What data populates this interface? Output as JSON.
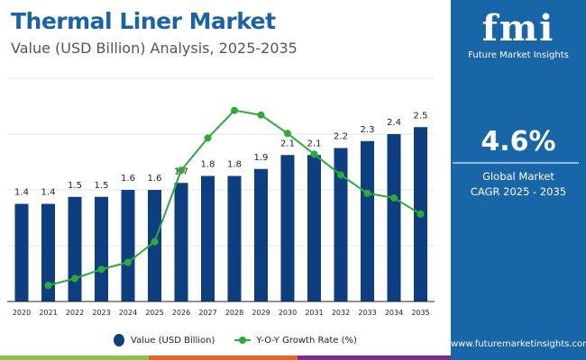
{
  "header": {
    "title": "Thermal Liner Market",
    "subtitle": "Value (USD Billion) Analysis, 2025-2035"
  },
  "panel": {
    "logo_text": "fmi",
    "brand": "Future Market Insights",
    "cagr": "4.6%",
    "cagr_label_1": "Global Market",
    "cagr_label_2": "CAGR 2025 - 2035",
    "url": "www.futuremarketinsights.com"
  },
  "colors": {
    "bar": "#0d3f80",
    "line": "#2eaa3a",
    "panel": "#1866a7",
    "title": "#1a64a6",
    "stripes": [
      "#8bc34a",
      "#e8622c",
      "#7b2d8e"
    ]
  },
  "chart_data": {
    "type": "bar+line",
    "categories": [
      "2020",
      "2021",
      "2022",
      "2023",
      "2024",
      "2025",
      "2026",
      "2027",
      "2028",
      "2029",
      "2030",
      "2031",
      "2032",
      "2033",
      "2034",
      "2035"
    ],
    "series": [
      {
        "name": "Value (USD Billion)",
        "type": "bar",
        "values": [
          1.4,
          1.4,
          1.5,
          1.5,
          1.6,
          1.6,
          1.7,
          1.8,
          1.8,
          1.9,
          2.1,
          2.1,
          2.2,
          2.3,
          2.4,
          2.5
        ],
        "labels": [
          "1.4",
          "1.4",
          "1.5",
          "1.5",
          "1.6",
          "1.6",
          "1.7",
          "1.8",
          "1.8",
          "1.9",
          "2.1",
          "2.1",
          "2.2",
          "2.3",
          "2.4",
          "2.5"
        ]
      },
      {
        "name": "Y-O-Y Growth Rate (%)",
        "type": "line",
        "values": [
          null,
          0.7,
          1.0,
          1.4,
          1.7,
          2.6,
          5.7,
          7.1,
          8.3,
          8.1,
          7.3,
          6.4,
          5.5,
          4.7,
          4.5,
          3.8
        ]
      }
    ],
    "ylim": [
      0,
      3.2
    ],
    "y2lim": [
      0,
      9.5
    ],
    "grid": true,
    "legend": "bottom"
  }
}
